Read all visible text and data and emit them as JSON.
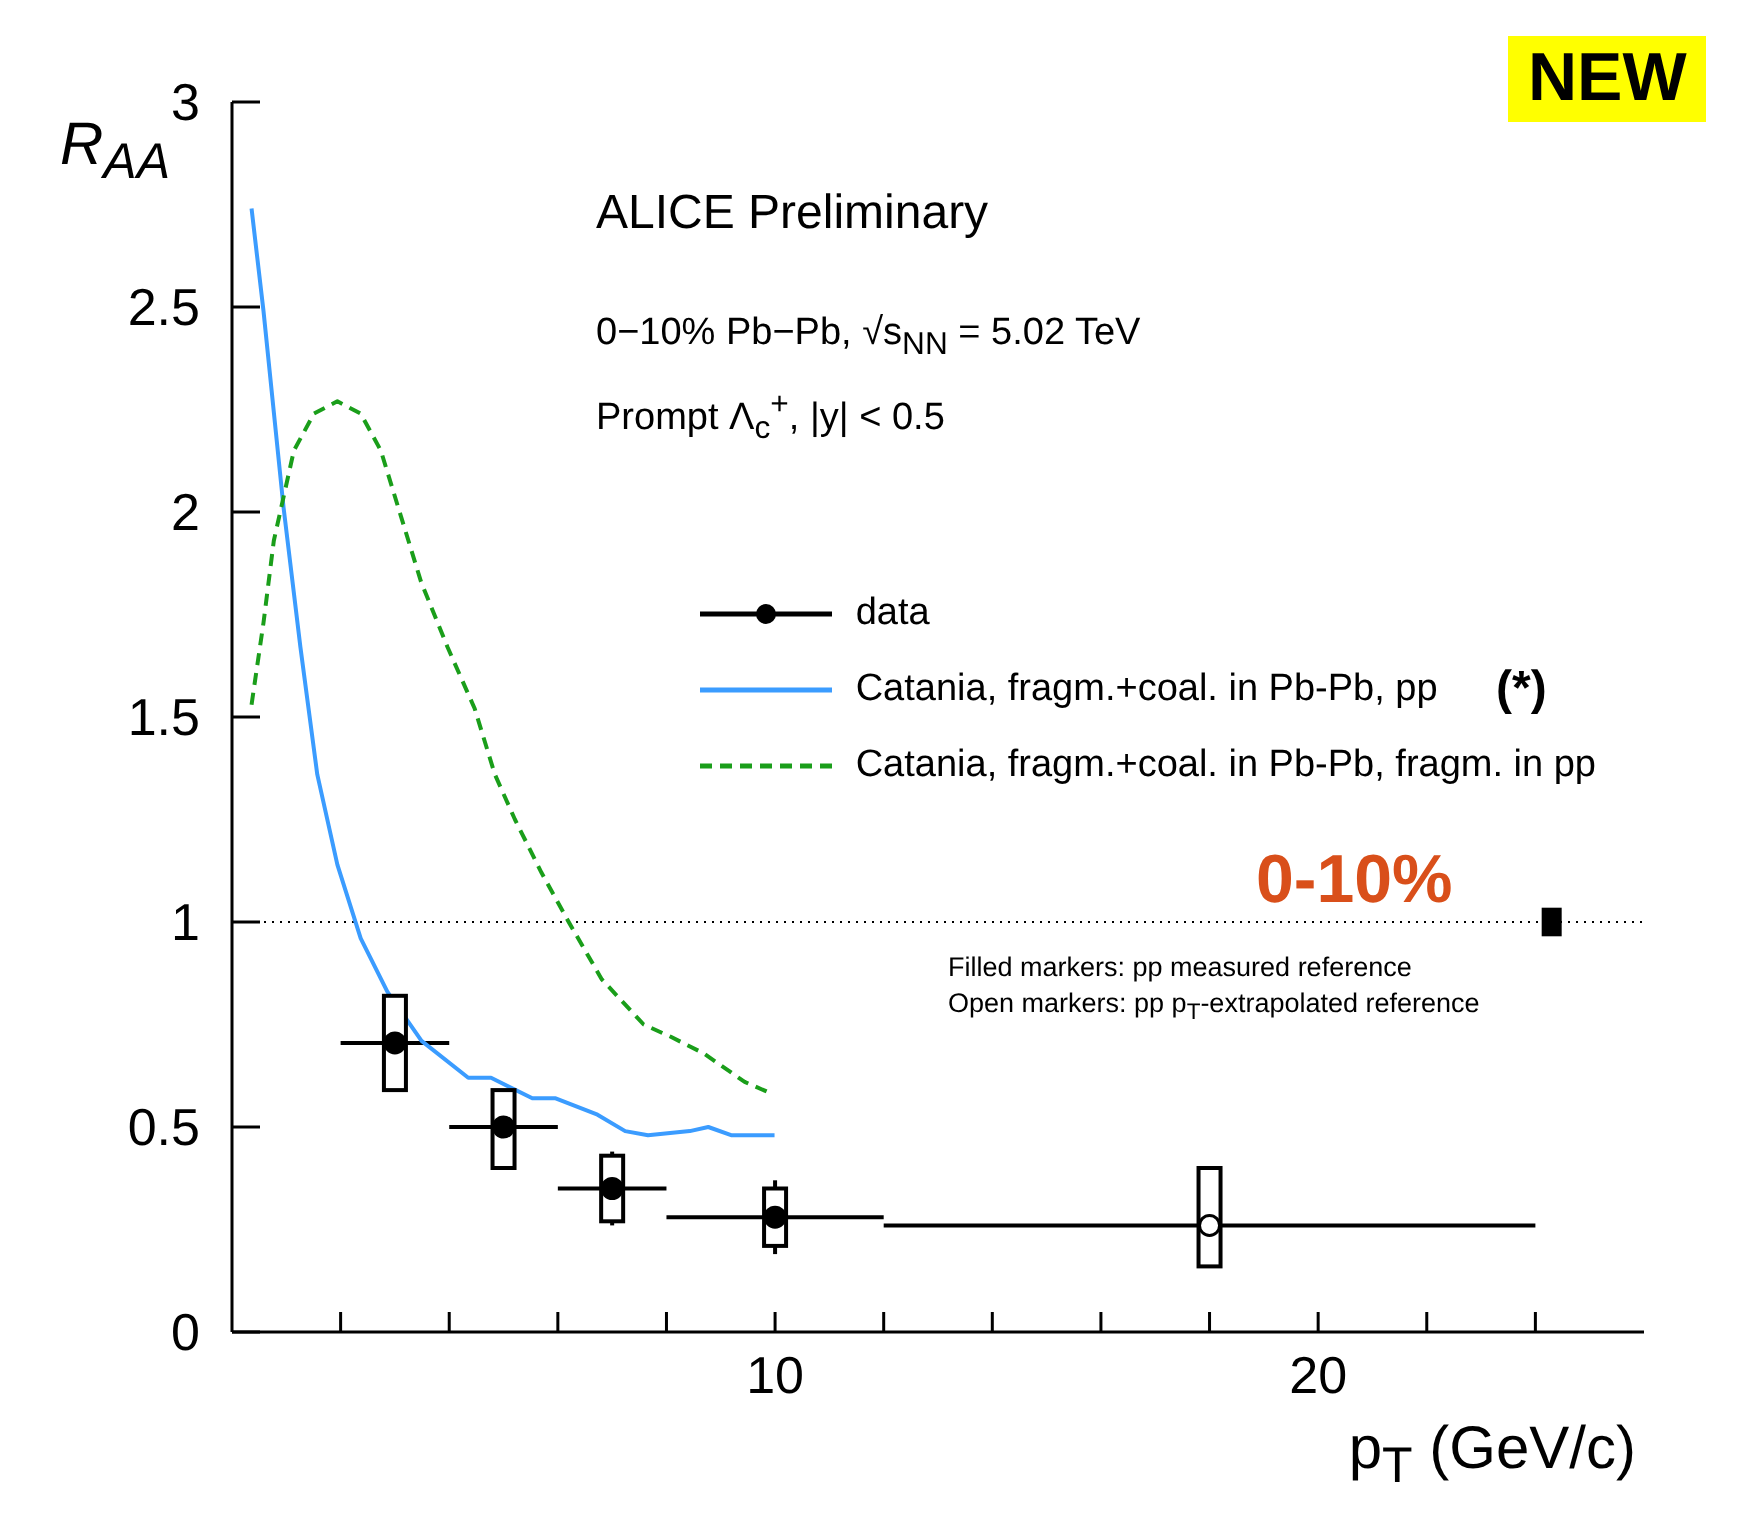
{
  "chart_data": {
    "type": "scatter",
    "xlabel": "p$_{T}$ (GeV/c)",
    "ylabel": "R$_{AA}$",
    "xlim": [
      0,
      26
    ],
    "ylim": [
      0,
      3
    ],
    "xticks": [
      {
        "value": 2,
        "label": null
      },
      {
        "value": 4,
        "label": null
      },
      {
        "value": 6,
        "label": null
      },
      {
        "value": 8,
        "label": null
      },
      10,
      {
        "value": 12,
        "label": null
      },
      {
        "value": 14,
        "label": null
      },
      {
        "value": 16,
        "label": null
      },
      {
        "value": 18,
        "label": null
      },
      20,
      {
        "value": 22,
        "label": null
      },
      {
        "value": 24,
        "label": null
      }
    ],
    "yticks": [
      0,
      0.5,
      1,
      1.5,
      2,
      2.5,
      3
    ],
    "legend": "right",
    "ref_lines": [
      {
        "axis": "y",
        "value": 1,
        "color": "#000000",
        "line_style": "dotted"
      }
    ],
    "annotations": [
      "ALICE Preliminary",
      "0−10% Pb−Pb, √s$_{NN}$ = 5.02 TeV",
      "Prompt Λ$_{c}$$^{+}$, |y| < 0.5",
      "(*)",
      "0-10%",
      "Filled markers: pp measured reference",
      "Open markers: pp p$_{T}$-extrapolated reference",
      "NEW"
    ],
    "series": [
      {
        "type": "bar",
        "color": "#000000",
        "colors": [
          "#ffffff",
          "#ffffff",
          "#ffffff",
          "#ffffff",
          "#ffffff"
        ],
        "x": [
          3,
          5,
          7,
          10,
          18
        ],
        "base": [
          0.59,
          0.4,
          0.27,
          0.21,
          0.16
        ],
        "values": [
          0.23,
          0.19,
          0.16,
          0.14,
          0.24
        ]
      },
      {
        "type": "bar",
        "color": "#000000",
        "x": [
          24.3
        ],
        "base": [
          0.97
        ],
        "values": [
          0.06
        ]
      },
      {
        "name": "data",
        "color": "#000000",
        "colors": [
          "#000000",
          "#000000",
          "#000000",
          "#000000",
          "#ffffff"
        ],
        "marker": "circle",
        "x": [
          3,
          5,
          7,
          10,
          18
        ],
        "values": [
          0.705,
          0.5,
          0.35,
          0.28,
          0.26
        ],
        "errors": [
          null,
          null,
          0.09,
          0.09,
          0.1
        ],
        "xerrors": [
          1,
          1,
          1,
          2,
          6
        ]
      },
      {
        "type": "line",
        "name": "Catania, fragm.+coal. in Pb-Pb, pp",
        "color": "#3b9cff",
        "line_style": "solid",
        "x": [
          0.36,
          0.58,
          0.95,
          1.26,
          1.57,
          1.94,
          2.37,
          2.86,
          3.49,
          4.35,
          4.77,
          5.53,
          5.96,
          6.73,
          7.24,
          7.66,
          8.43,
          8.77,
          9.19,
          9.99
        ],
        "values": [
          2.74,
          2.49,
          2.01,
          1.67,
          1.36,
          1.14,
          0.96,
          0.83,
          0.71,
          0.62,
          0.62,
          0.57,
          0.57,
          0.53,
          0.49,
          0.48,
          0.49,
          0.5,
          0.48,
          0.48
        ]
      },
      {
        "type": "line",
        "name": "Catania, fragm.+coal. in Pb-Pb, fragm. in pp",
        "color": "#1a9e1a",
        "line_style": "dashed",
        "x": [
          0.36,
          0.58,
          0.77,
          1.14,
          1.51,
          1.94,
          2.37,
          2.74,
          3.11,
          3.48,
          3.97,
          4.47,
          4.84,
          5.21,
          5.7,
          6.2,
          6.81,
          7.58,
          8.08,
          8.68,
          9.44,
          9.96
        ],
        "values": [
          1.53,
          1.73,
          1.93,
          2.15,
          2.24,
          2.27,
          2.24,
          2.15,
          1.99,
          1.83,
          1.67,
          1.52,
          1.36,
          1.25,
          1.12,
          1.0,
          0.86,
          0.75,
          0.72,
          0.68,
          0.61,
          0.58
        ]
      }
    ]
  }
}
